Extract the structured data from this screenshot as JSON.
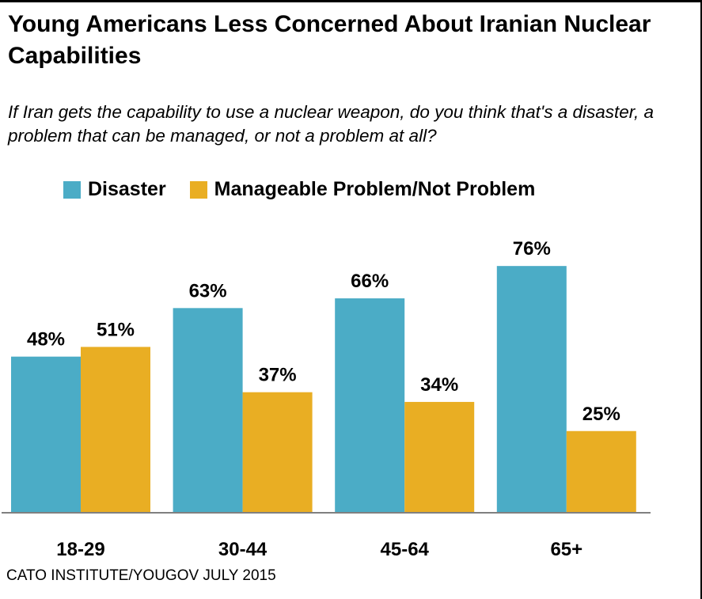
{
  "chart_data": {
    "type": "bar",
    "title": "Young Americans Less Concerned About Iranian Nuclear Capabilities",
    "subtitle": "If Iran gets the capability to use a nuclear weapon, do you think that's a disaster, a problem that can be managed, or not a problem at all?",
    "categories": [
      "18-29",
      "30-44",
      "45-64",
      "65+"
    ],
    "series": [
      {
        "name": "Disaster",
        "values": [
          48,
          63,
          66,
          76
        ],
        "labels": [
          "48%",
          "63%",
          "66%",
          "76%"
        ],
        "color": "#4BACC6"
      },
      {
        "name": "Manageable Problem/Not Problem",
        "values": [
          51,
          37,
          34,
          25
        ],
        "labels": [
          "51%",
          "37%",
          "34%",
          "25%"
        ],
        "color": "#E9AE23"
      }
    ],
    "xlabel": "",
    "ylabel": "",
    "ylim": [
      0,
      100
    ],
    "grid": false,
    "legend": "top",
    "source": "CATO INSTITUTE/YOUGOV JULY 2015"
  }
}
